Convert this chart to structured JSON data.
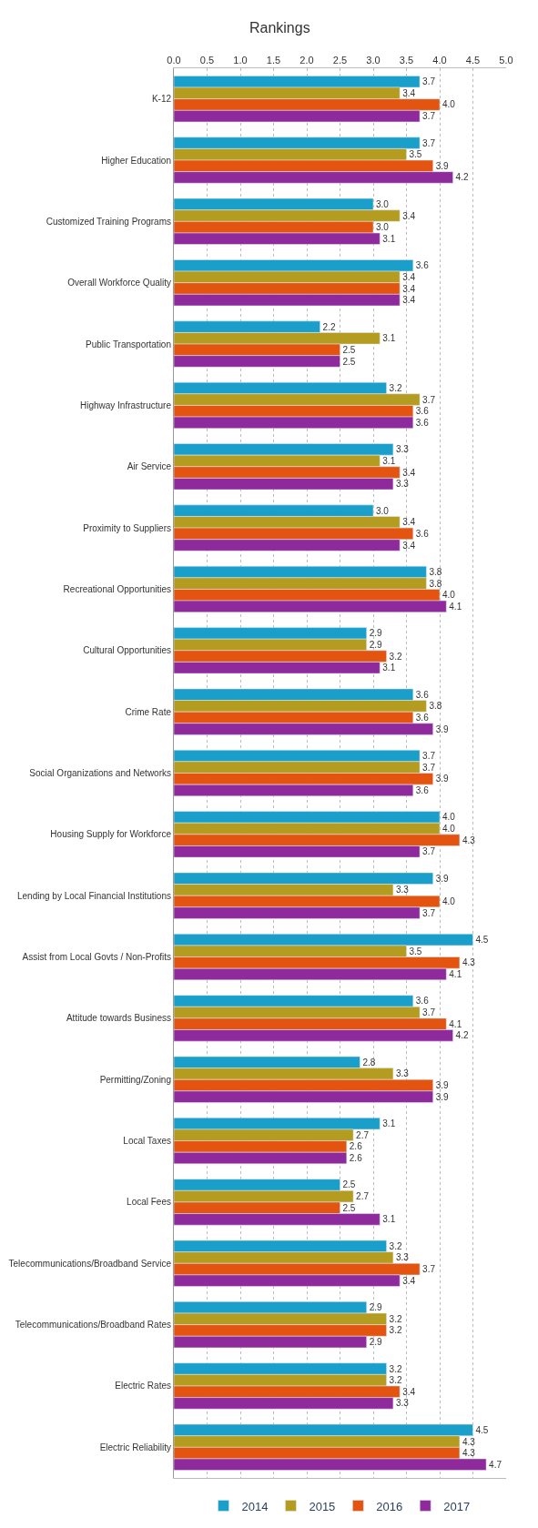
{
  "chart_data": {
    "type": "bar",
    "orientation": "horizontal",
    "title": "Rankings",
    "categories": [
      "K-12",
      "Higher Education",
      "Customized Training Programs",
      "Overall Workforce Quality",
      "Public Transportation",
      "Highway Infrastructure",
      "Air Service",
      "Proximity to Suppliers",
      "Recreational Opportunities",
      "Cultural Opportunities",
      "Crime Rate",
      "Social Organizations and Networks",
      "Housing Supply for Workforce",
      "Lending by Local Financial Institutions",
      "Assist from Local Govts / Non-Profits",
      "Attitude towards Business",
      "Permitting/Zoning",
      "Local Taxes",
      "Local Fees",
      "Telecommunications/Broadband Service",
      "Telecommunications/Broadband Rates",
      "Electric Rates",
      "Electric Reliability"
    ],
    "series": [
      {
        "name": "2014",
        "color": "#1a9fcb",
        "values": [
          3.7,
          3.7,
          3.0,
          3.6,
          2.2,
          3.2,
          3.3,
          3.0,
          3.8,
          2.9,
          3.6,
          3.7,
          4.0,
          3.9,
          4.5,
          3.6,
          2.8,
          3.1,
          2.5,
          3.2,
          2.9,
          3.2,
          4.5
        ],
        "value_labels": [
          "3.7",
          "3.7",
          "3.0",
          "3.6",
          "2.2",
          "3.2",
          "3.3",
          "3.0",
          "3.8",
          "2.9",
          "3.6",
          "3.7",
          "4.0",
          "3.9",
          "4.5",
          "3.6",
          "2.8",
          "3.1",
          "2.5",
          "3.2",
          "2.9",
          "3.2",
          "4.5"
        ]
      },
      {
        "name": "2015",
        "color": "#b39c1f",
        "values": [
          3.4,
          3.5,
          3.4,
          3.4,
          3.1,
          3.7,
          3.1,
          3.4,
          3.8,
          2.9,
          3.8,
          3.7,
          4.0,
          3.3,
          3.5,
          3.7,
          3.3,
          2.7,
          2.7,
          3.3,
          3.2,
          3.2,
          4.3
        ],
        "value_labels": [
          "3.4",
          "3.5",
          "3.4",
          "3.4",
          "3.1",
          "3.7",
          "3.1",
          "3.4",
          "3.8",
          "2.9",
          "3.8",
          "3.7",
          "4.0",
          "3.3",
          "3.5",
          "3.7",
          "3.3",
          "2.7",
          "2.7",
          "3.3",
          "3.2",
          "3.2",
          "4.3"
        ]
      },
      {
        "name": "2016",
        "color": "#e2540f",
        "values": [
          4.0,
          3.9,
          3.0,
          3.4,
          2.5,
          3.6,
          3.4,
          3.6,
          4.0,
          3.2,
          3.6,
          3.9,
          4.3,
          4.0,
          4.3,
          4.1,
          3.9,
          2.6,
          2.5,
          3.7,
          3.2,
          3.4,
          4.3
        ],
        "value_labels": [
          "4.0",
          "3.9",
          "3.0",
          "3.4",
          "2.5",
          "3.6",
          "3.4",
          "3.6",
          "4.0",
          "3.2",
          "3.6",
          "3.9",
          "4.3",
          "4.0",
          "4.3",
          "4.1",
          "3.9",
          "2.6",
          "2.5",
          "3.7",
          "3.2",
          "3.4",
          "4.3"
        ]
      },
      {
        "name": "2017",
        "color": "#8e2a9c",
        "values": [
          3.7,
          4.2,
          3.1,
          3.4,
          2.5,
          3.6,
          3.3,
          3.4,
          4.1,
          3.1,
          3.9,
          3.6,
          3.7,
          3.7,
          4.1,
          4.2,
          3.9,
          2.6,
          3.1,
          3.4,
          2.9,
          3.3,
          4.7
        ],
        "value_labels": [
          "3.7",
          "4.2",
          "3.1",
          "3.4",
          "2.5",
          "3.6",
          "3.3",
          "3.4",
          "4.1",
          "3.1",
          "3.9",
          "3.6",
          "3.7",
          "3.7",
          "4.1",
          "4.2",
          "3.9",
          "2.6",
          "3.1",
          "3.4",
          "2.9",
          "3.3",
          "4.7"
        ]
      }
    ],
    "xlim": [
      0,
      5
    ],
    "xticks": [
      "0.0",
      "0.5",
      "1.0",
      "1.5",
      "2.0",
      "2.5",
      "3.0",
      "3.5",
      "4.0",
      "4.5",
      "5.0"
    ],
    "grid": "x",
    "legend": "bottom"
  }
}
